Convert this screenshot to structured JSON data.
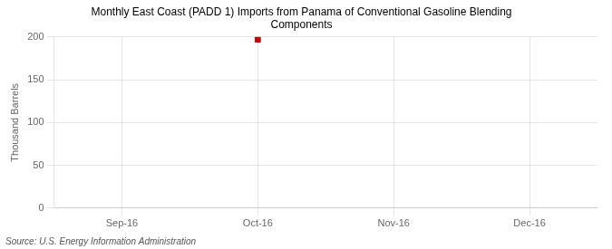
{
  "chart_data": {
    "type": "line",
    "title": "Monthly East Coast (PADD 1) Imports from Panama of Conventional Gasoline Blending\nComponents",
    "ylabel": "Thousand Barrels",
    "source": "Source: U.S. Energy Information Administration",
    "categories": [
      "Sep-16",
      "Oct-16",
      "Nov-16",
      "Dec-16"
    ],
    "values": [
      null,
      197,
      null,
      null
    ],
    "color": "#cc0000",
    "marker": "square",
    "line_style": "none",
    "ylim": [
      0,
      200
    ],
    "yticks": [
      0,
      50,
      100,
      150,
      200
    ],
    "grid": true
  }
}
